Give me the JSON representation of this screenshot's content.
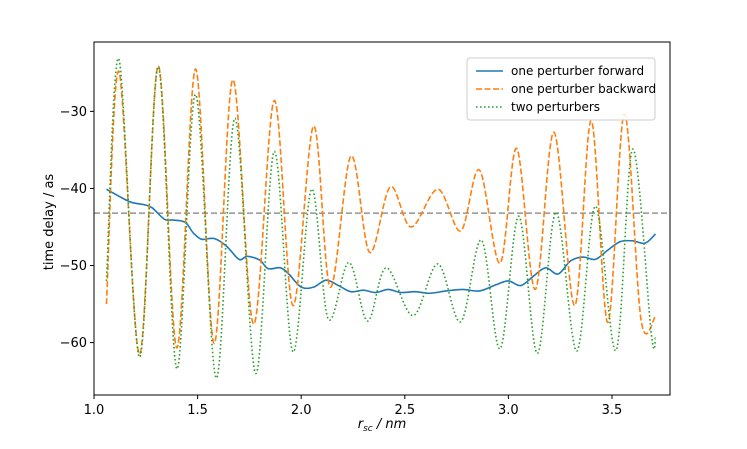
{
  "chart_data": {
    "type": "line",
    "xlabel_main": "r",
    "xlabel_sub": "sc",
    "xlabel_unit": " / nm",
    "ylabel": "time delay  / as",
    "xlim": [
      1.0,
      3.78
    ],
    "ylim": [
      -66.8,
      -21.0
    ],
    "xticks": [
      1.0,
      1.5,
      2.0,
      2.5,
      3.0,
      3.5
    ],
    "xtick_labels": [
      "1.0",
      "1.5",
      "2.0",
      "2.5",
      "3.0",
      "3.5"
    ],
    "yticks": [
      -60,
      -50,
      -40,
      -30
    ],
    "ytick_labels": [
      "−60",
      "−50",
      "−40",
      "−30"
    ],
    "reference_line": {
      "y": -43.2,
      "color": "#7f7f7f",
      "style": "dashed"
    },
    "legend_position": "top-right",
    "series": [
      {
        "name": "one perturber forward",
        "color": "#1f77b4",
        "style": "solid",
        "x": [
          1.06,
          1.12,
          1.18,
          1.24,
          1.28,
          1.34,
          1.38,
          1.44,
          1.48,
          1.52,
          1.58,
          1.64,
          1.7,
          1.74,
          1.8,
          1.84,
          1.9,
          1.94,
          2.0,
          2.06,
          2.12,
          2.18,
          2.24,
          2.3,
          2.36,
          2.42,
          2.48,
          2.55,
          2.62,
          2.7,
          2.78,
          2.86,
          2.94,
          3.0,
          3.06,
          3.12,
          3.18,
          3.24,
          3.3,
          3.36,
          3.42,
          3.48,
          3.54,
          3.6,
          3.66,
          3.71
        ],
        "y": [
          -40.1,
          -41.0,
          -41.8,
          -42.1,
          -42.5,
          -44.0,
          -44.1,
          -44.4,
          -45.8,
          -46.6,
          -46.5,
          -47.5,
          -49.2,
          -48.8,
          -49.3,
          -50.4,
          -50.3,
          -51.1,
          -52.8,
          -52.8,
          -51.9,
          -52.6,
          -53.4,
          -53.2,
          -53.5,
          -53.1,
          -53.5,
          -53.4,
          -53.6,
          -53.3,
          -53.1,
          -53.3,
          -52.5,
          -52.0,
          -52.6,
          -51.4,
          -50.3,
          -51.1,
          -49.4,
          -48.9,
          -49.2,
          -48.0,
          -46.9,
          -46.8,
          -47.1,
          -45.9
        ]
      },
      {
        "name": "one perturber backward",
        "color": "#ff7f0e",
        "style": "dashed",
        "x": [
          1.06,
          1.12,
          1.22,
          1.31,
          1.4,
          1.49,
          1.58,
          1.67,
          1.77,
          1.87,
          1.96,
          2.06,
          2.14,
          2.24,
          2.33,
          2.43,
          2.53,
          2.66,
          2.77,
          2.86,
          2.96,
          3.04,
          3.13,
          3.22,
          3.32,
          3.4,
          3.48,
          3.56,
          3.64,
          3.71
        ],
        "y": [
          -55.0,
          -24.8,
          -61.5,
          -24.1,
          -60.7,
          -24.5,
          -60.1,
          -25.9,
          -57.6,
          -28.6,
          -55.2,
          -31.9,
          -52.8,
          -35.8,
          -48.3,
          -39.8,
          -45.0,
          -40.1,
          -45.5,
          -37.6,
          -49.7,
          -34.8,
          -53.1,
          -32.7,
          -55.2,
          -31.2,
          -57.4,
          -30.3,
          -57.0,
          -56.6
        ]
      },
      {
        "name": "two perturbers",
        "color": "#2ca02c",
        "style": "dotted",
        "x": [
          1.06,
          1.12,
          1.22,
          1.31,
          1.4,
          1.49,
          1.59,
          1.68,
          1.78,
          1.87,
          1.96,
          2.05,
          2.13,
          2.23,
          2.32,
          2.41,
          2.54,
          2.66,
          2.77,
          2.87,
          2.96,
          3.05,
          3.14,
          3.23,
          3.33,
          3.42,
          3.52,
          3.6,
          3.69,
          3.71
        ],
        "y": [
          -52.0,
          -23.2,
          -61.9,
          -24.2,
          -63.4,
          -27.8,
          -64.6,
          -30.9,
          -64.0,
          -35.2,
          -61.2,
          -40.1,
          -56.9,
          -49.6,
          -57.2,
          -50.3,
          -56.5,
          -49.8,
          -57.3,
          -46.7,
          -60.8,
          -43.6,
          -61.4,
          -43.1,
          -61.1,
          -42.3,
          -61.0,
          -34.9,
          -58.9,
          -59.4
        ]
      }
    ]
  }
}
